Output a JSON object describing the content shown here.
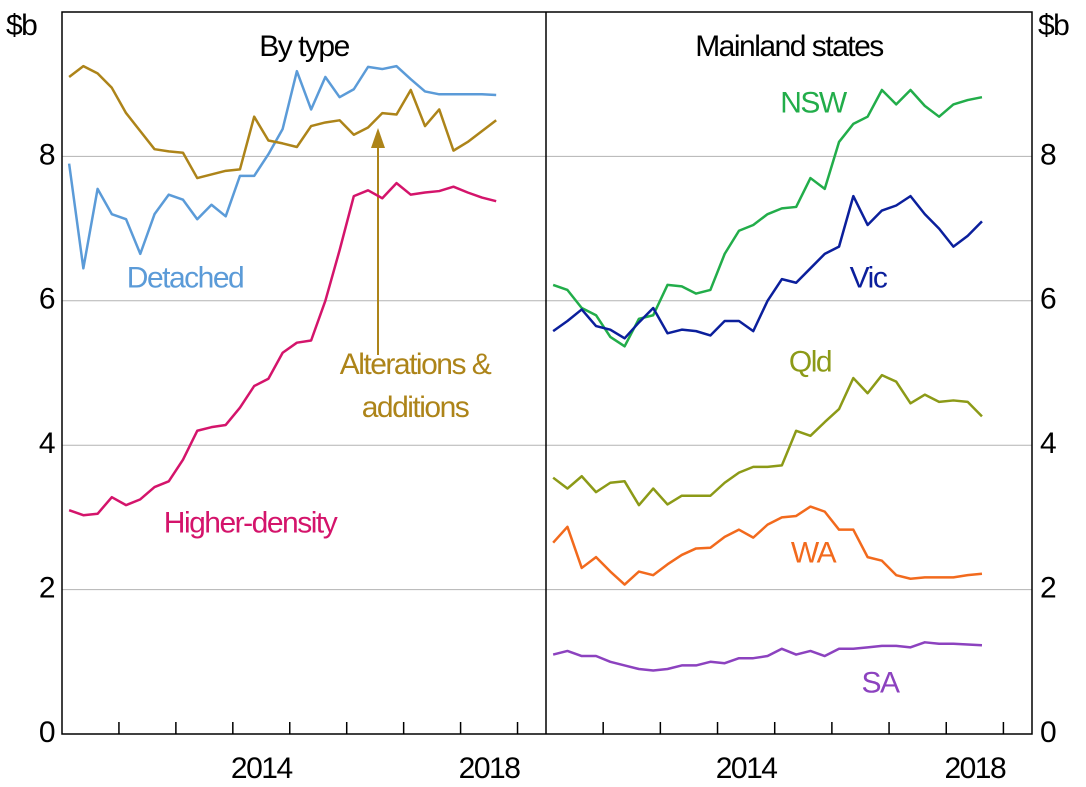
{
  "chart_data": [
    {
      "type": "line",
      "title": "By type",
      "y_label": "$b",
      "x": [
        2011.125,
        2011.375,
        2011.625,
        2011.875,
        2012.125,
        2012.375,
        2012.625,
        2012.875,
        2013.125,
        2013.375,
        2013.625,
        2013.875,
        2014.125,
        2014.375,
        2014.625,
        2014.875,
        2015.125,
        2015.375,
        2015.625,
        2015.875,
        2016.125,
        2016.375,
        2016.625,
        2016.875,
        2017.125,
        2017.375,
        2017.625,
        2017.875,
        2018.125,
        2018.375,
        2018.625
      ],
      "xlim": [
        2011,
        2019.5
      ],
      "xticks": [
        2014,
        2018
      ],
      "ylim": [
        0,
        10
      ],
      "yticks": [
        0,
        2,
        4,
        6,
        8
      ],
      "grid": true,
      "series": [
        {
          "name": "Detached",
          "color": "#5b9bd8",
          "values": [
            7.9,
            6.45,
            7.55,
            7.2,
            7.13,
            6.65,
            7.2,
            7.47,
            7.4,
            7.13,
            7.33,
            7.17,
            7.73,
            7.73,
            8.03,
            8.38,
            9.18,
            8.65,
            9.1,
            8.82,
            8.93,
            9.24,
            9.21,
            9.25,
            9.07,
            8.9,
            8.86,
            8.86,
            8.86,
            8.86,
            8.85
          ]
        },
        {
          "name": "Alterations & additions",
          "color": "#ad8419",
          "values": [
            9.1,
            9.25,
            9.15,
            8.95,
            8.6,
            8.35,
            8.1,
            8.07,
            8.05,
            7.7,
            7.75,
            7.8,
            7.82,
            8.55,
            8.22,
            8.18,
            8.13,
            8.42,
            8.47,
            8.5,
            8.3,
            8.4,
            8.6,
            8.58,
            8.92,
            8.42,
            8.65,
            8.08,
            8.2,
            8.35,
            8.5
          ]
        },
        {
          "name": "Higher-density",
          "color": "#d4146b",
          "values": [
            3.1,
            3.03,
            3.05,
            3.28,
            3.17,
            3.25,
            3.42,
            3.5,
            3.8,
            4.2,
            4.25,
            4.28,
            4.52,
            4.82,
            4.92,
            5.28,
            5.42,
            5.45,
            6.0,
            6.7,
            7.45,
            7.53,
            7.42,
            7.63,
            7.47,
            7.5,
            7.52,
            7.58,
            7.5,
            7.43,
            7.38
          ]
        }
      ]
    },
    {
      "type": "line",
      "title": "Mainland states",
      "y_label": "$b",
      "x": [
        2011.125,
        2011.375,
        2011.625,
        2011.875,
        2012.125,
        2012.375,
        2012.625,
        2012.875,
        2013.125,
        2013.375,
        2013.625,
        2013.875,
        2014.125,
        2014.375,
        2014.625,
        2014.875,
        2015.125,
        2015.375,
        2015.625,
        2015.875,
        2016.125,
        2016.375,
        2016.625,
        2016.875,
        2017.125,
        2017.375,
        2017.625,
        2017.875,
        2018.125,
        2018.375,
        2018.625
      ],
      "xlim": [
        2011,
        2019.5
      ],
      "xticks": [
        2014,
        2018
      ],
      "ylim": [
        0,
        10
      ],
      "yticks": [
        0,
        2,
        4,
        6,
        8
      ],
      "grid": true,
      "series": [
        {
          "name": "NSW",
          "color": "#22ad4a",
          "values": [
            6.22,
            6.15,
            5.9,
            5.8,
            5.5,
            5.37,
            5.75,
            5.8,
            6.22,
            6.2,
            6.1,
            6.15,
            6.65,
            6.97,
            7.05,
            7.2,
            7.28,
            7.3,
            7.7,
            7.55,
            8.2,
            8.45,
            8.55,
            8.92,
            8.72,
            8.92,
            8.7,
            8.55,
            8.72,
            8.78,
            8.82
          ]
        },
        {
          "name": "Vic",
          "color": "#0b1f9c",
          "values": [
            5.58,
            5.72,
            5.88,
            5.65,
            5.6,
            5.48,
            5.7,
            5.9,
            5.55,
            5.6,
            5.58,
            5.52,
            5.72,
            5.72,
            5.58,
            6.0,
            6.3,
            6.25,
            6.45,
            6.65,
            6.75,
            7.45,
            7.05,
            7.25,
            7.32,
            7.45,
            7.2,
            7.0,
            6.75,
            6.9,
            7.1
          ]
        },
        {
          "name": "Qld",
          "color": "#8c9a17",
          "values": [
            3.55,
            3.4,
            3.57,
            3.35,
            3.48,
            3.5,
            3.17,
            3.4,
            3.18,
            3.3,
            3.3,
            3.3,
            3.48,
            3.62,
            3.7,
            3.7,
            3.72,
            4.2,
            4.13,
            4.32,
            4.5,
            4.93,
            4.72,
            4.97,
            4.88,
            4.58,
            4.7,
            4.6,
            4.62,
            4.6,
            4.4
          ]
        },
        {
          "name": "WA",
          "color": "#f26a1d",
          "values": [
            2.65,
            2.87,
            2.3,
            2.45,
            2.25,
            2.07,
            2.25,
            2.2,
            2.35,
            2.48,
            2.57,
            2.58,
            2.73,
            2.83,
            2.72,
            2.9,
            3.0,
            3.02,
            3.15,
            3.08,
            2.83,
            2.83,
            2.45,
            2.4,
            2.2,
            2.15,
            2.17,
            2.17,
            2.17,
            2.2,
            2.22
          ]
        },
        {
          "name": "SA",
          "color": "#8c42bf",
          "values": [
            1.1,
            1.15,
            1.08,
            1.08,
            1.0,
            0.95,
            0.9,
            0.88,
            0.9,
            0.95,
            0.95,
            1.0,
            0.98,
            1.05,
            1.05,
            1.08,
            1.18,
            1.1,
            1.15,
            1.08,
            1.18,
            1.18,
            1.2,
            1.22,
            1.22,
            1.2,
            1.27,
            1.25,
            1.25,
            1.24,
            1.23
          ]
        }
      ]
    }
  ]
}
